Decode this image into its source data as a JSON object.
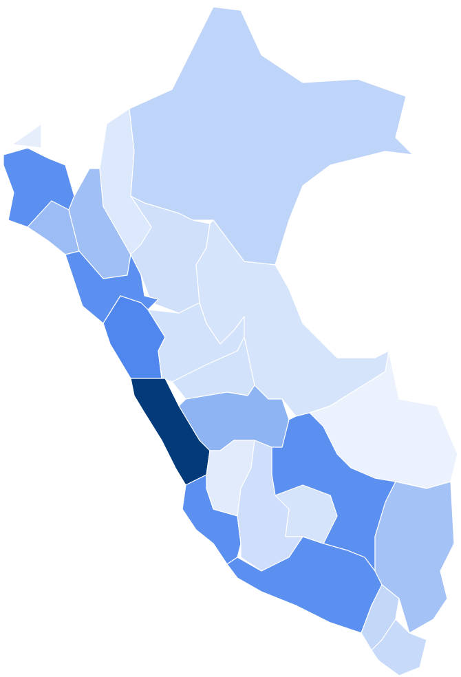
{
  "map": {
    "regions": [
      {
        "color": "#e6eefb"
      },
      {
        "color": "#5b8ff0"
      },
      {
        "color": "#9bbcf5"
      },
      {
        "color": "#a0bff5"
      },
      {
        "color": "#dce8fc"
      },
      {
        "color": "#bfd4f9"
      },
      {
        "color": "#d0e0fb"
      },
      {
        "color": "#5b8ff0"
      },
      {
        "color": "#5087ef"
      },
      {
        "color": "#d3e2fb"
      },
      {
        "color": "#d6e4fb"
      },
      {
        "color": "#d3e2fb"
      },
      {
        "color": "#023a7a"
      },
      {
        "color": "#8fb4f4"
      },
      {
        "color": "#ebf1fd"
      },
      {
        "color": "#5b8ff0"
      },
      {
        "color": "#a5c2f6"
      },
      {
        "color": "#e2ebfc"
      },
      {
        "color": "#5b8ff0"
      },
      {
        "color": "#cfdffb"
      },
      {
        "color": "#d5e3fb"
      },
      {
        "color": "#5b8ff0"
      },
      {
        "color": "#c3d7f9"
      },
      {
        "color": "#c8dafa"
      }
    ]
  }
}
